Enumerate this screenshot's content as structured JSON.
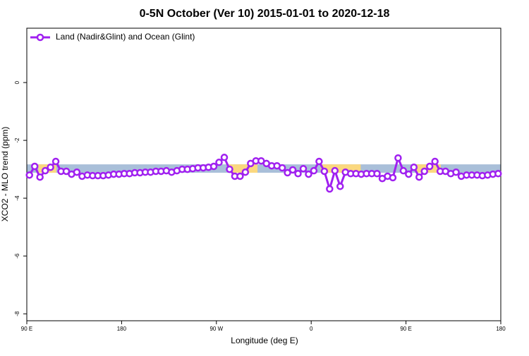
{
  "chart_data": {
    "type": "line",
    "title": "0-5N October (Ver 10)   2015-01-01 to 2020-12-18",
    "x_label": "Longitude (deg E)",
    "y_label": "XCO2 - MLO trend (ppm)",
    "xlim": [
      90,
      540
    ],
    "xticks": [
      {
        "value": 90,
        "label": "90 E"
      },
      180,
      {
        "value": 270,
        "label": "90 W"
      },
      0,
      {
        "value": 450,
        "label": "90 E"
      },
      {
        "value": 540,
        "label": "180"
      }
    ],
    "ylim": [
      -8.24,
      1.88
    ],
    "yticks": [
      0,
      -2,
      -4,
      -6,
      -8
    ],
    "legend": "top-left",
    "band": {
      "range": [
        -3.12,
        -2.83
      ],
      "color": "#a9bfd9"
    },
    "highlights": {
      "color": "#fbd87f",
      "ranges": [
        [
          101,
          118
        ],
        [
          282,
          309
        ],
        [
          369,
          407
        ],
        [
          460,
          483
        ]
      ]
    },
    "x": [
      92.5,
      97.5,
      102.5,
      107.5,
      112.5,
      117.5,
      122.5,
      127.5,
      132.5,
      137.5,
      142.5,
      147.5,
      152.5,
      157.5,
      162.5,
      167.5,
      172.5,
      177.5,
      182.5,
      187.5,
      192.5,
      197.5,
      202.5,
      207.5,
      212.5,
      217.5,
      222.5,
      227.5,
      232.5,
      237.5,
      242.5,
      247.5,
      252.5,
      257.5,
      262.5,
      267.5,
      272.5,
      277.5,
      282.5,
      287.5,
      292.5,
      297.5,
      302.5,
      307.5,
      312.5,
      317.5,
      322.5,
      327.5,
      332.5,
      337.5,
      342.5,
      347.5,
      352.5,
      357.5,
      362.5,
      367.5,
      372.5,
      377.5,
      382.5,
      387.5,
      392.5,
      397.5,
      402.5,
      407.5,
      412.5,
      417.5,
      422.5,
      427.5,
      432.5,
      437.5,
      442.5,
      447.5,
      452.5,
      457.5,
      462.5,
      467.5,
      472.5,
      477.5,
      482.5,
      487.5,
      492.5,
      497.5,
      502.5,
      507.5,
      512.5,
      517.5,
      522.5,
      527.5,
      532.5,
      537.5
    ],
    "series": [
      {
        "name": "Land (Nadir&Glint) and Ocean (Glint)",
        "color": "#a020f0",
        "values": [
          -3.2,
          -2.9,
          -3.27,
          -3.05,
          -2.93,
          -2.73,
          -3.07,
          -3.07,
          -3.17,
          -3.1,
          -3.24,
          -3.2,
          -3.22,
          -3.22,
          -3.22,
          -3.2,
          -3.17,
          -3.17,
          -3.15,
          -3.15,
          -3.12,
          -3.12,
          -3.1,
          -3.1,
          -3.07,
          -3.07,
          -3.05,
          -3.1,
          -3.05,
          -3.0,
          -3.0,
          -2.98,
          -2.95,
          -2.95,
          -2.93,
          -2.9,
          -2.76,
          -2.59,
          -3.0,
          -3.24,
          -3.24,
          -3.1,
          -2.8,
          -2.71,
          -2.71,
          -2.8,
          -2.88,
          -2.88,
          -2.95,
          -3.12,
          -3.02,
          -3.15,
          -2.98,
          -3.17,
          -3.05,
          -2.73,
          -3.07,
          -3.68,
          -3.05,
          -3.59,
          -3.1,
          -3.15,
          -3.15,
          -3.17,
          -3.15,
          -3.15,
          -3.15,
          -3.32,
          -3.24,
          -3.29,
          -2.61,
          -3.05,
          -3.17,
          -2.93,
          -3.27,
          -3.07,
          -2.9,
          -2.73,
          -3.07,
          -3.07,
          -3.15,
          -3.1,
          -3.24,
          -3.2,
          -3.2,
          -3.2,
          -3.22,
          -3.2,
          -3.17,
          -3.15
        ]
      }
    ]
  }
}
